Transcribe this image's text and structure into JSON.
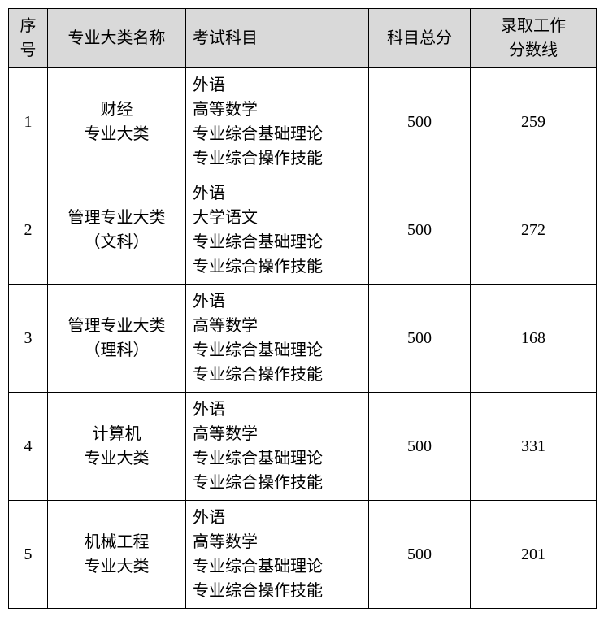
{
  "table": {
    "columns": [
      {
        "key": "seq",
        "label": "序号",
        "class": "col-seq"
      },
      {
        "key": "major",
        "label": "专业大类名称",
        "class": "col-major"
      },
      {
        "key": "subjects",
        "label": "考试科目",
        "class": "col-subjects"
      },
      {
        "key": "total",
        "label": "科目总分",
        "class": "col-total"
      },
      {
        "key": "cutoff",
        "label": "录取工作分数线",
        "class": "col-cutoff"
      }
    ],
    "header_two_line": {
      "cutoff_line1": "录取工作",
      "cutoff_line2": "分数线",
      "seq_line1": "序",
      "seq_line2": "号"
    },
    "rows": [
      {
        "seq": "1",
        "major_lines": [
          "财经",
          "专业大类"
        ],
        "subjects": [
          "外语",
          "高等数学",
          "专业综合基础理论",
          "专业综合操作技能"
        ],
        "total": "500",
        "cutoff": "259"
      },
      {
        "seq": "2",
        "major_lines": [
          "管理专业大类",
          "（文科）"
        ],
        "subjects": [
          "外语",
          "大学语文",
          "专业综合基础理论",
          "专业综合操作技能"
        ],
        "total": "500",
        "cutoff": "272"
      },
      {
        "seq": "3",
        "major_lines": [
          "管理专业大类",
          "（理科）"
        ],
        "subjects": [
          "外语",
          "高等数学",
          "专业综合基础理论",
          "专业综合操作技能"
        ],
        "total": "500",
        "cutoff": "168"
      },
      {
        "seq": "4",
        "major_lines": [
          "计算机",
          "专业大类"
        ],
        "subjects": [
          "外语",
          "高等数学",
          "专业综合基础理论",
          "专业综合操作技能"
        ],
        "total": "500",
        "cutoff": "331"
      },
      {
        "seq": "5",
        "major_lines": [
          "机械工程",
          "专业大类"
        ],
        "subjects": [
          "外语",
          "高等数学",
          "专业综合基础理论",
          "专业综合操作技能"
        ],
        "total": "500",
        "cutoff": "201"
      }
    ],
    "style": {
      "header_bg": "#d9d9d9",
      "border_color": "#000000",
      "font_size_pt": 15,
      "background_color": "#ffffff"
    }
  }
}
